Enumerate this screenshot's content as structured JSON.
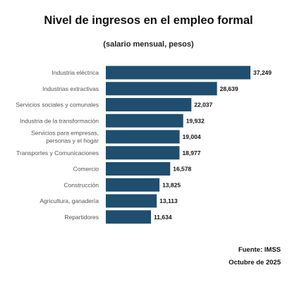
{
  "header": {
    "title": "Nivel de ingresos en el empleo formal",
    "subtitle": "(salario mensual, pesos)"
  },
  "footer": {
    "source": "Fuente: IMSS",
    "date": "Octubre de 2025"
  },
  "colors": {
    "bar": "#1f4e6e",
    "label": "#555555",
    "value": "#111111"
  },
  "chart_data": {
    "type": "bar",
    "orientation": "horizontal",
    "title": "Nivel de ingresos en el empleo formal",
    "subtitle": "(salario mensual, pesos)",
    "categories": [
      [
        "Industria eléctrica"
      ],
      [
        "Industrias extractivas"
      ],
      [
        "Servicios sociales y comunales"
      ],
      [
        "Industria de la transformación"
      ],
      [
        "Servicios para empresas,",
        "personas y el hogar"
      ],
      [
        "Transportes y Comunicaciones"
      ],
      [
        "Comercio"
      ],
      [
        "Construcción"
      ],
      [
        "Agricultura, ganadería"
      ],
      [
        "Repartidores"
      ]
    ],
    "values": [
      37249,
      28639,
      22037,
      19932,
      19004,
      18977,
      16578,
      13825,
      13113,
      11634
    ],
    "value_labels": [
      "37,249",
      "28,639",
      "22,037",
      "19,932",
      "19,004",
      "18,977",
      "16,578",
      "13,825",
      "13,113",
      "11,634"
    ],
    "xlim": [
      0,
      37249
    ],
    "grid": false,
    "legend": "none"
  }
}
